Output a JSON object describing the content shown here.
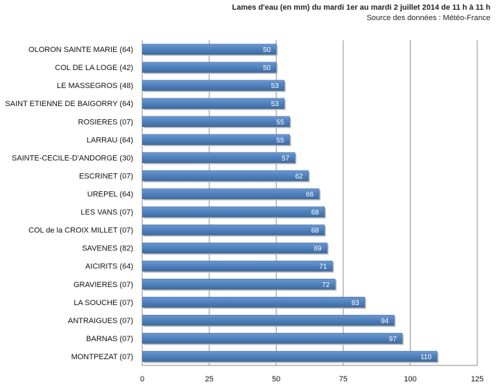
{
  "chart_data": {
    "type": "bar",
    "orientation": "horizontal",
    "title": "Lames d'eau (en mm) du mardi 1er au mardi 2 juillet 2014 de 11 h à 11 h",
    "subtitle": "Source des données : Météo-France",
    "categories": [
      "OLORON SAINTE MARIE (64)",
      "COL DE LA LOGE (42)",
      "LE MASSEGROS (48)",
      "SAINT ETIENNE DE BAIGORRY (64)",
      "ROSIERES (07)",
      "LARRAU (64)",
      "SAINTE-CECILE-D'ANDORGE (30)",
      "ESCRINET (07)",
      "UREPEL (64)",
      "LES VANS (07)",
      "COL de la CROIX MILLET (07)",
      "SAVENES (82)",
      "AICIRITS (64)",
      "GRAVIERES (07)",
      "LA SOUCHE (07)",
      "ANTRAIGUES (07)",
      "BARNAS (07)",
      "MONTPEZAT (07)"
    ],
    "values": [
      50,
      50,
      53,
      53,
      55,
      55,
      57,
      62,
      66,
      68,
      68,
      69,
      71,
      72,
      83,
      94,
      97,
      110
    ],
    "xlim": [
      0,
      125
    ],
    "xticks": [
      0,
      25,
      50,
      75,
      100,
      125
    ],
    "grid": true,
    "bar_color": "#4F81BD",
    "data_labels": true
  }
}
